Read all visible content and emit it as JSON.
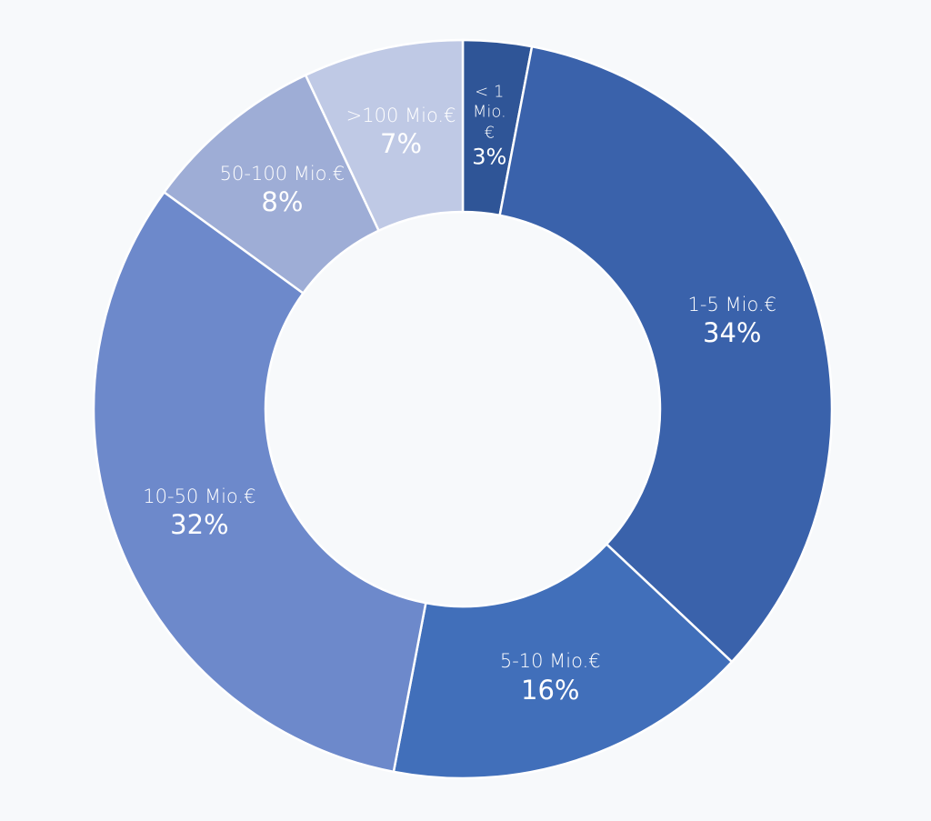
{
  "chart_data": {
    "type": "donut",
    "categories": [
      "< 1 Mio. €",
      "1-5 Mio.€",
      "5-10 Mio.€",
      "10-50 Mio.€",
      "50-100 Mio.€",
      ">100 Mio.€"
    ],
    "values": [
      3,
      34,
      16,
      32,
      8,
      7
    ],
    "value_labels": [
      "3%",
      "34%",
      "16%",
      "32%",
      "8%",
      "7%"
    ],
    "colors": [
      "#2f5597",
      "#3a62ab",
      "#416fba",
      "#6d89cb",
      "#9eadd6",
      "#bfc9e5"
    ]
  }
}
